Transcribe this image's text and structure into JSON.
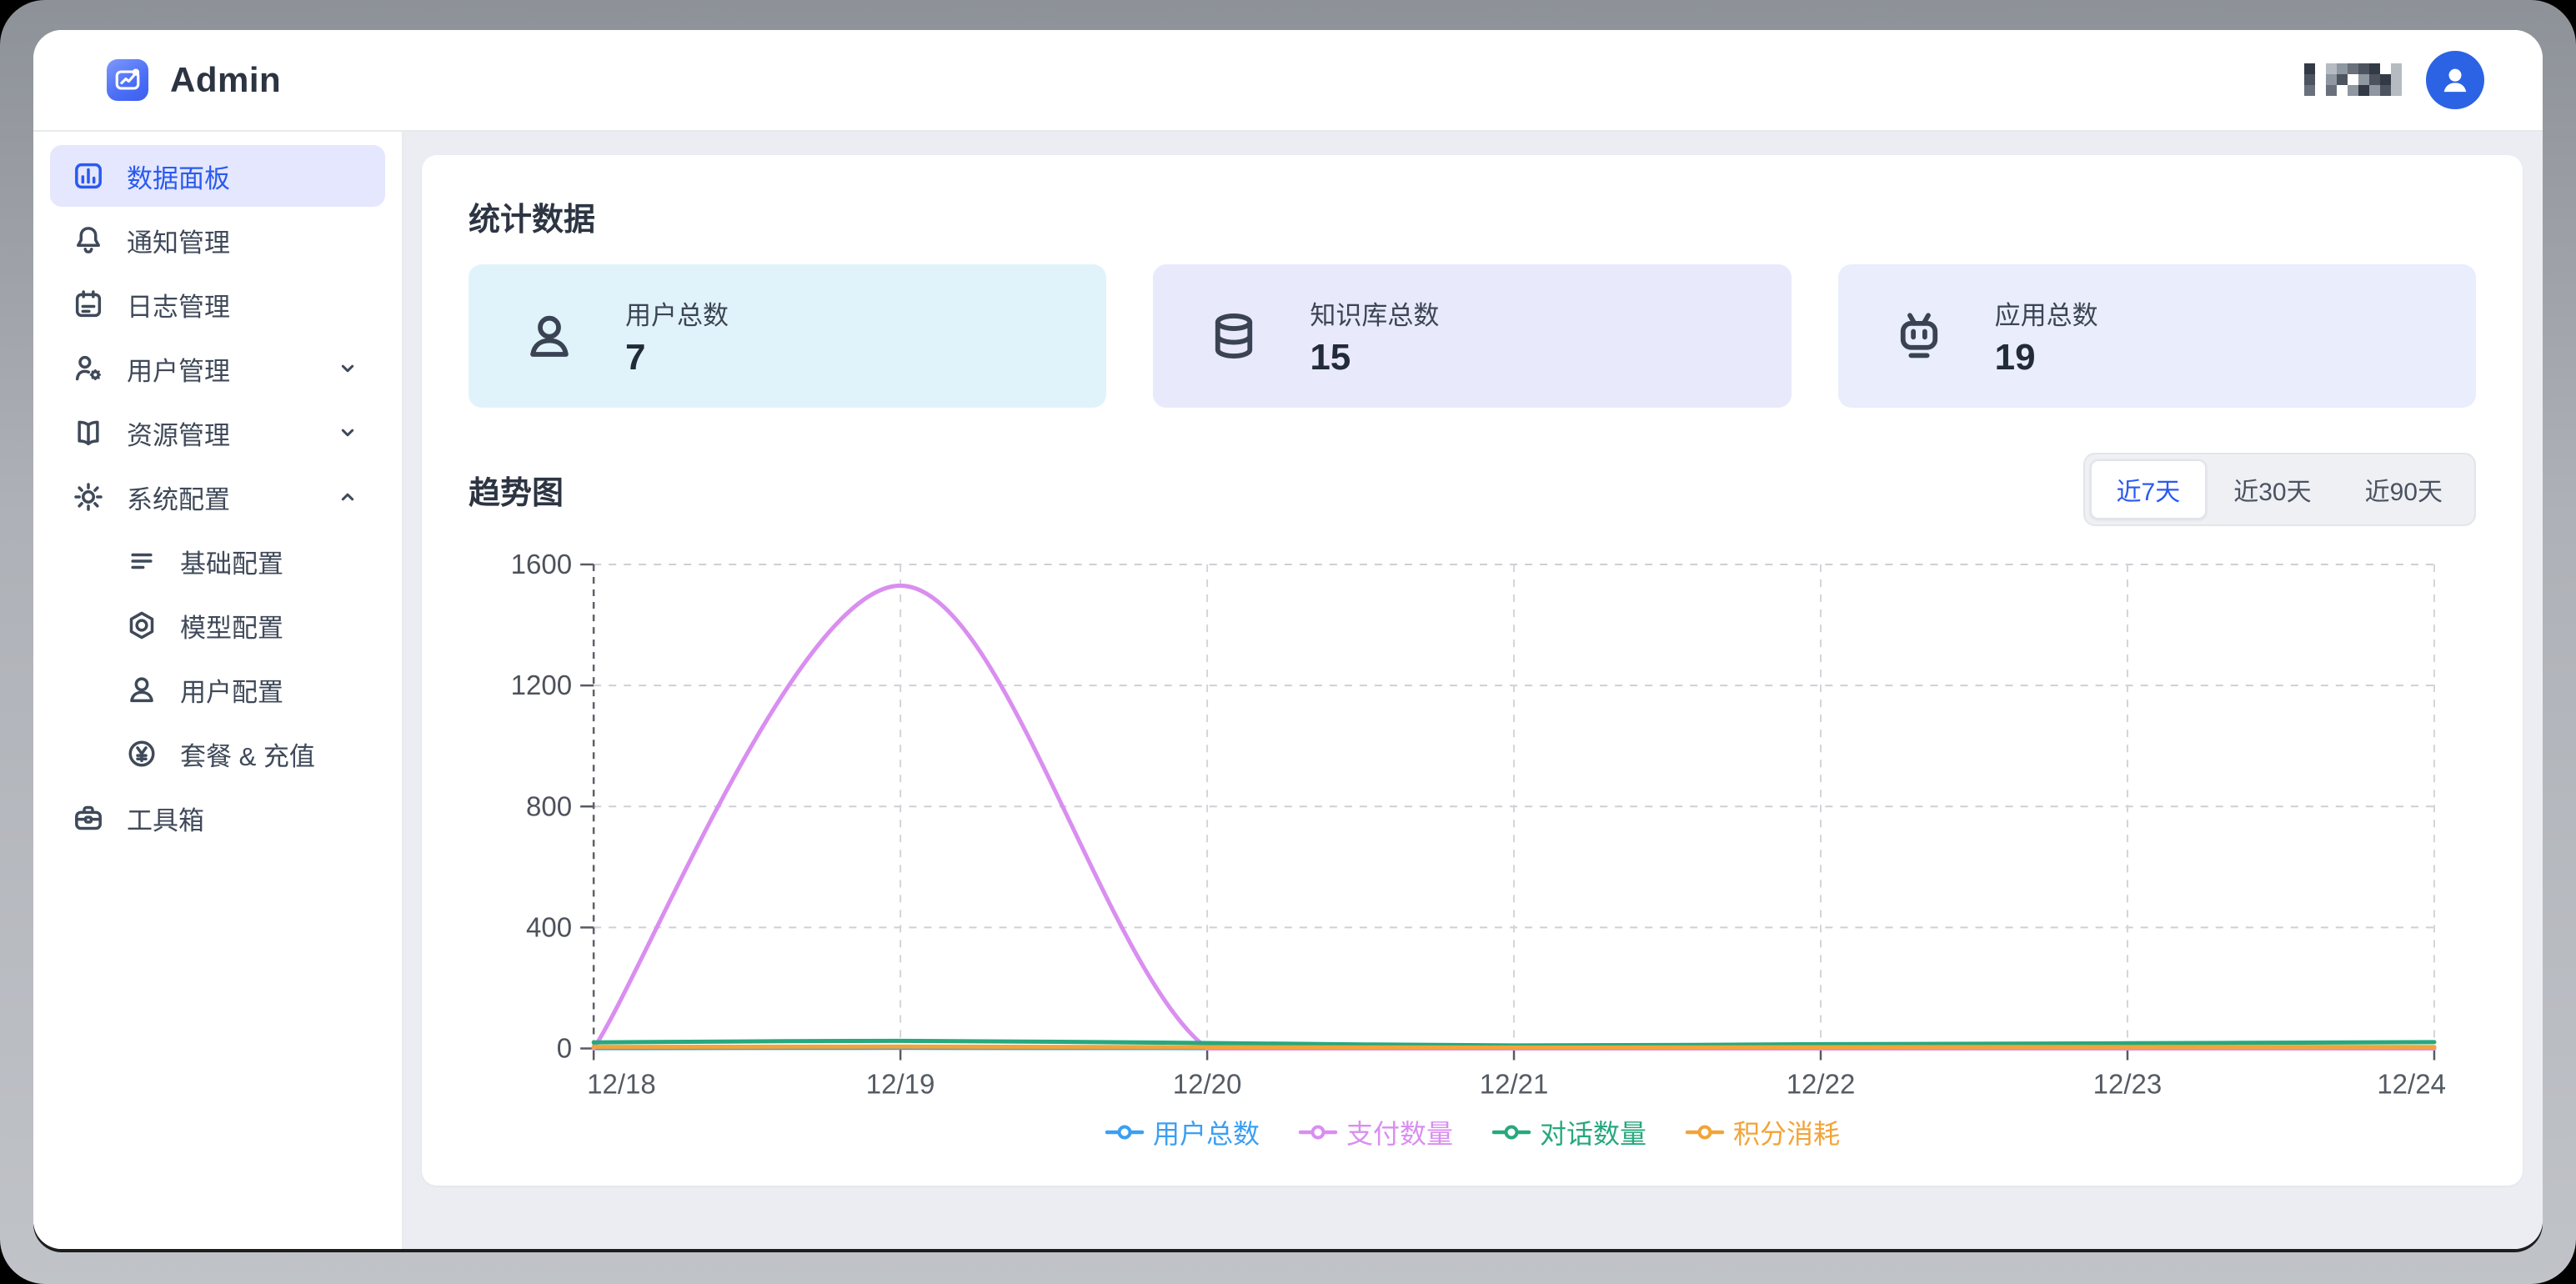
{
  "header": {
    "brand": "Admin",
    "user_name_redacted": true
  },
  "sidebar": {
    "items": [
      {
        "label": "数据面板",
        "icon": "dashboard-chart-icon",
        "active": true
      },
      {
        "label": "通知管理",
        "icon": "bell-icon"
      },
      {
        "label": "日志管理",
        "icon": "log-calendar-icon"
      },
      {
        "label": "用户管理",
        "icon": "user-gear-icon",
        "chevron": "down"
      },
      {
        "label": "资源管理",
        "icon": "book-icon",
        "chevron": "down"
      },
      {
        "label": "系统配置",
        "icon": "gear-icon",
        "chevron": "up",
        "children": [
          {
            "label": "基础配置",
            "icon": "list-lines-icon"
          },
          {
            "label": "模型配置",
            "icon": "model-icon"
          },
          {
            "label": "用户配置",
            "icon": "user-icon"
          },
          {
            "label": "套餐 & 充值",
            "icon": "yen-circle-icon"
          }
        ]
      },
      {
        "label": "工具箱",
        "icon": "toolbox-icon"
      }
    ]
  },
  "stats": {
    "title": "统计数据",
    "cards": [
      {
        "label": "用户总数",
        "value": "7",
        "icon": "user-icon",
        "bg": "#e1f3fa"
      },
      {
        "label": "知识库总数",
        "value": "15",
        "icon": "database-icon",
        "bg": "#e9e9fc"
      },
      {
        "label": "应用总数",
        "value": "19",
        "icon": "robot-icon",
        "bg": "#e9edfc"
      }
    ]
  },
  "trend": {
    "title": "趋势图",
    "ranges": [
      {
        "label": "近7天",
        "active": true
      },
      {
        "label": "近30天",
        "active": false
      },
      {
        "label": "近90天",
        "active": false
      }
    ]
  },
  "chart_data": {
    "type": "line",
    "smooth": true,
    "x": [
      "12/18",
      "12/19",
      "12/20",
      "12/21",
      "12/22",
      "12/23",
      "12/24"
    ],
    "series": [
      {
        "name": "用户总数",
        "color": "#3b9ff2",
        "values": [
          1,
          2,
          1,
          1,
          1,
          1,
          1
        ]
      },
      {
        "name": "支付数量",
        "color": "#d98ef0",
        "values": [
          0,
          1530,
          0,
          0,
          0,
          0,
          0
        ]
      },
      {
        "name": "对话数量",
        "color": "#27a87e",
        "values": [
          20,
          25,
          18,
          10,
          14,
          17,
          21
        ]
      },
      {
        "name": "积分消耗",
        "color": "#f2a438",
        "values": [
          5,
          6,
          4,
          3,
          4,
          5,
          5
        ]
      }
    ],
    "ylim": [
      0,
      1600
    ],
    "yticks": [
      0,
      400,
      800,
      1200,
      1600
    ],
    "grid": "dashed",
    "legend_position": "bottom"
  },
  "colors": {
    "accent_blue": "#2a5af0",
    "active_item_bg": "#e4e7fd",
    "content_bg": "#ecedf3",
    "avatar_blue": "#2c63e4"
  }
}
